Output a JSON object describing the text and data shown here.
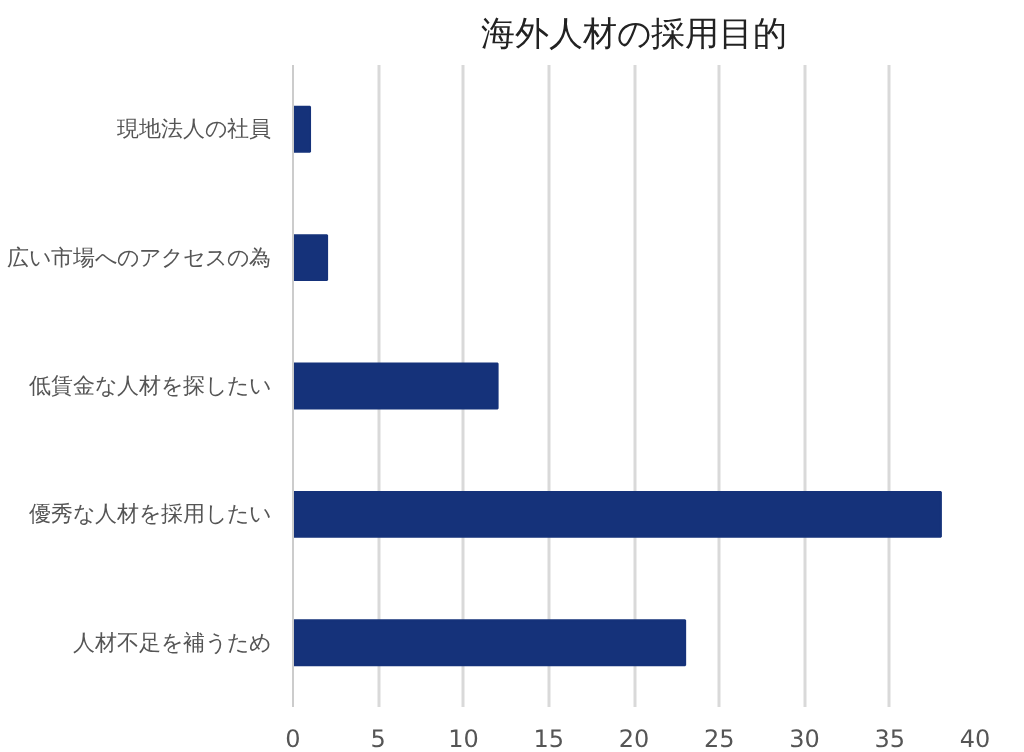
{
  "chart_data": {
    "type": "bar",
    "orientation": "horizontal",
    "title": "海外人材の採用目的",
    "categories": [
      "現地法人の社員",
      "広い市場へのアクセスの為",
      "低賃金な人材を探したい",
      "優秀な人材を採用したい",
      "人材不足を補うため"
    ],
    "values": [
      1,
      2,
      12,
      38,
      23
    ],
    "color": "#15327a",
    "xlim": [
      0,
      40
    ],
    "xticks": [
      0,
      5,
      10,
      15,
      20,
      25,
      30,
      35,
      40
    ],
    "grid": "x"
  }
}
